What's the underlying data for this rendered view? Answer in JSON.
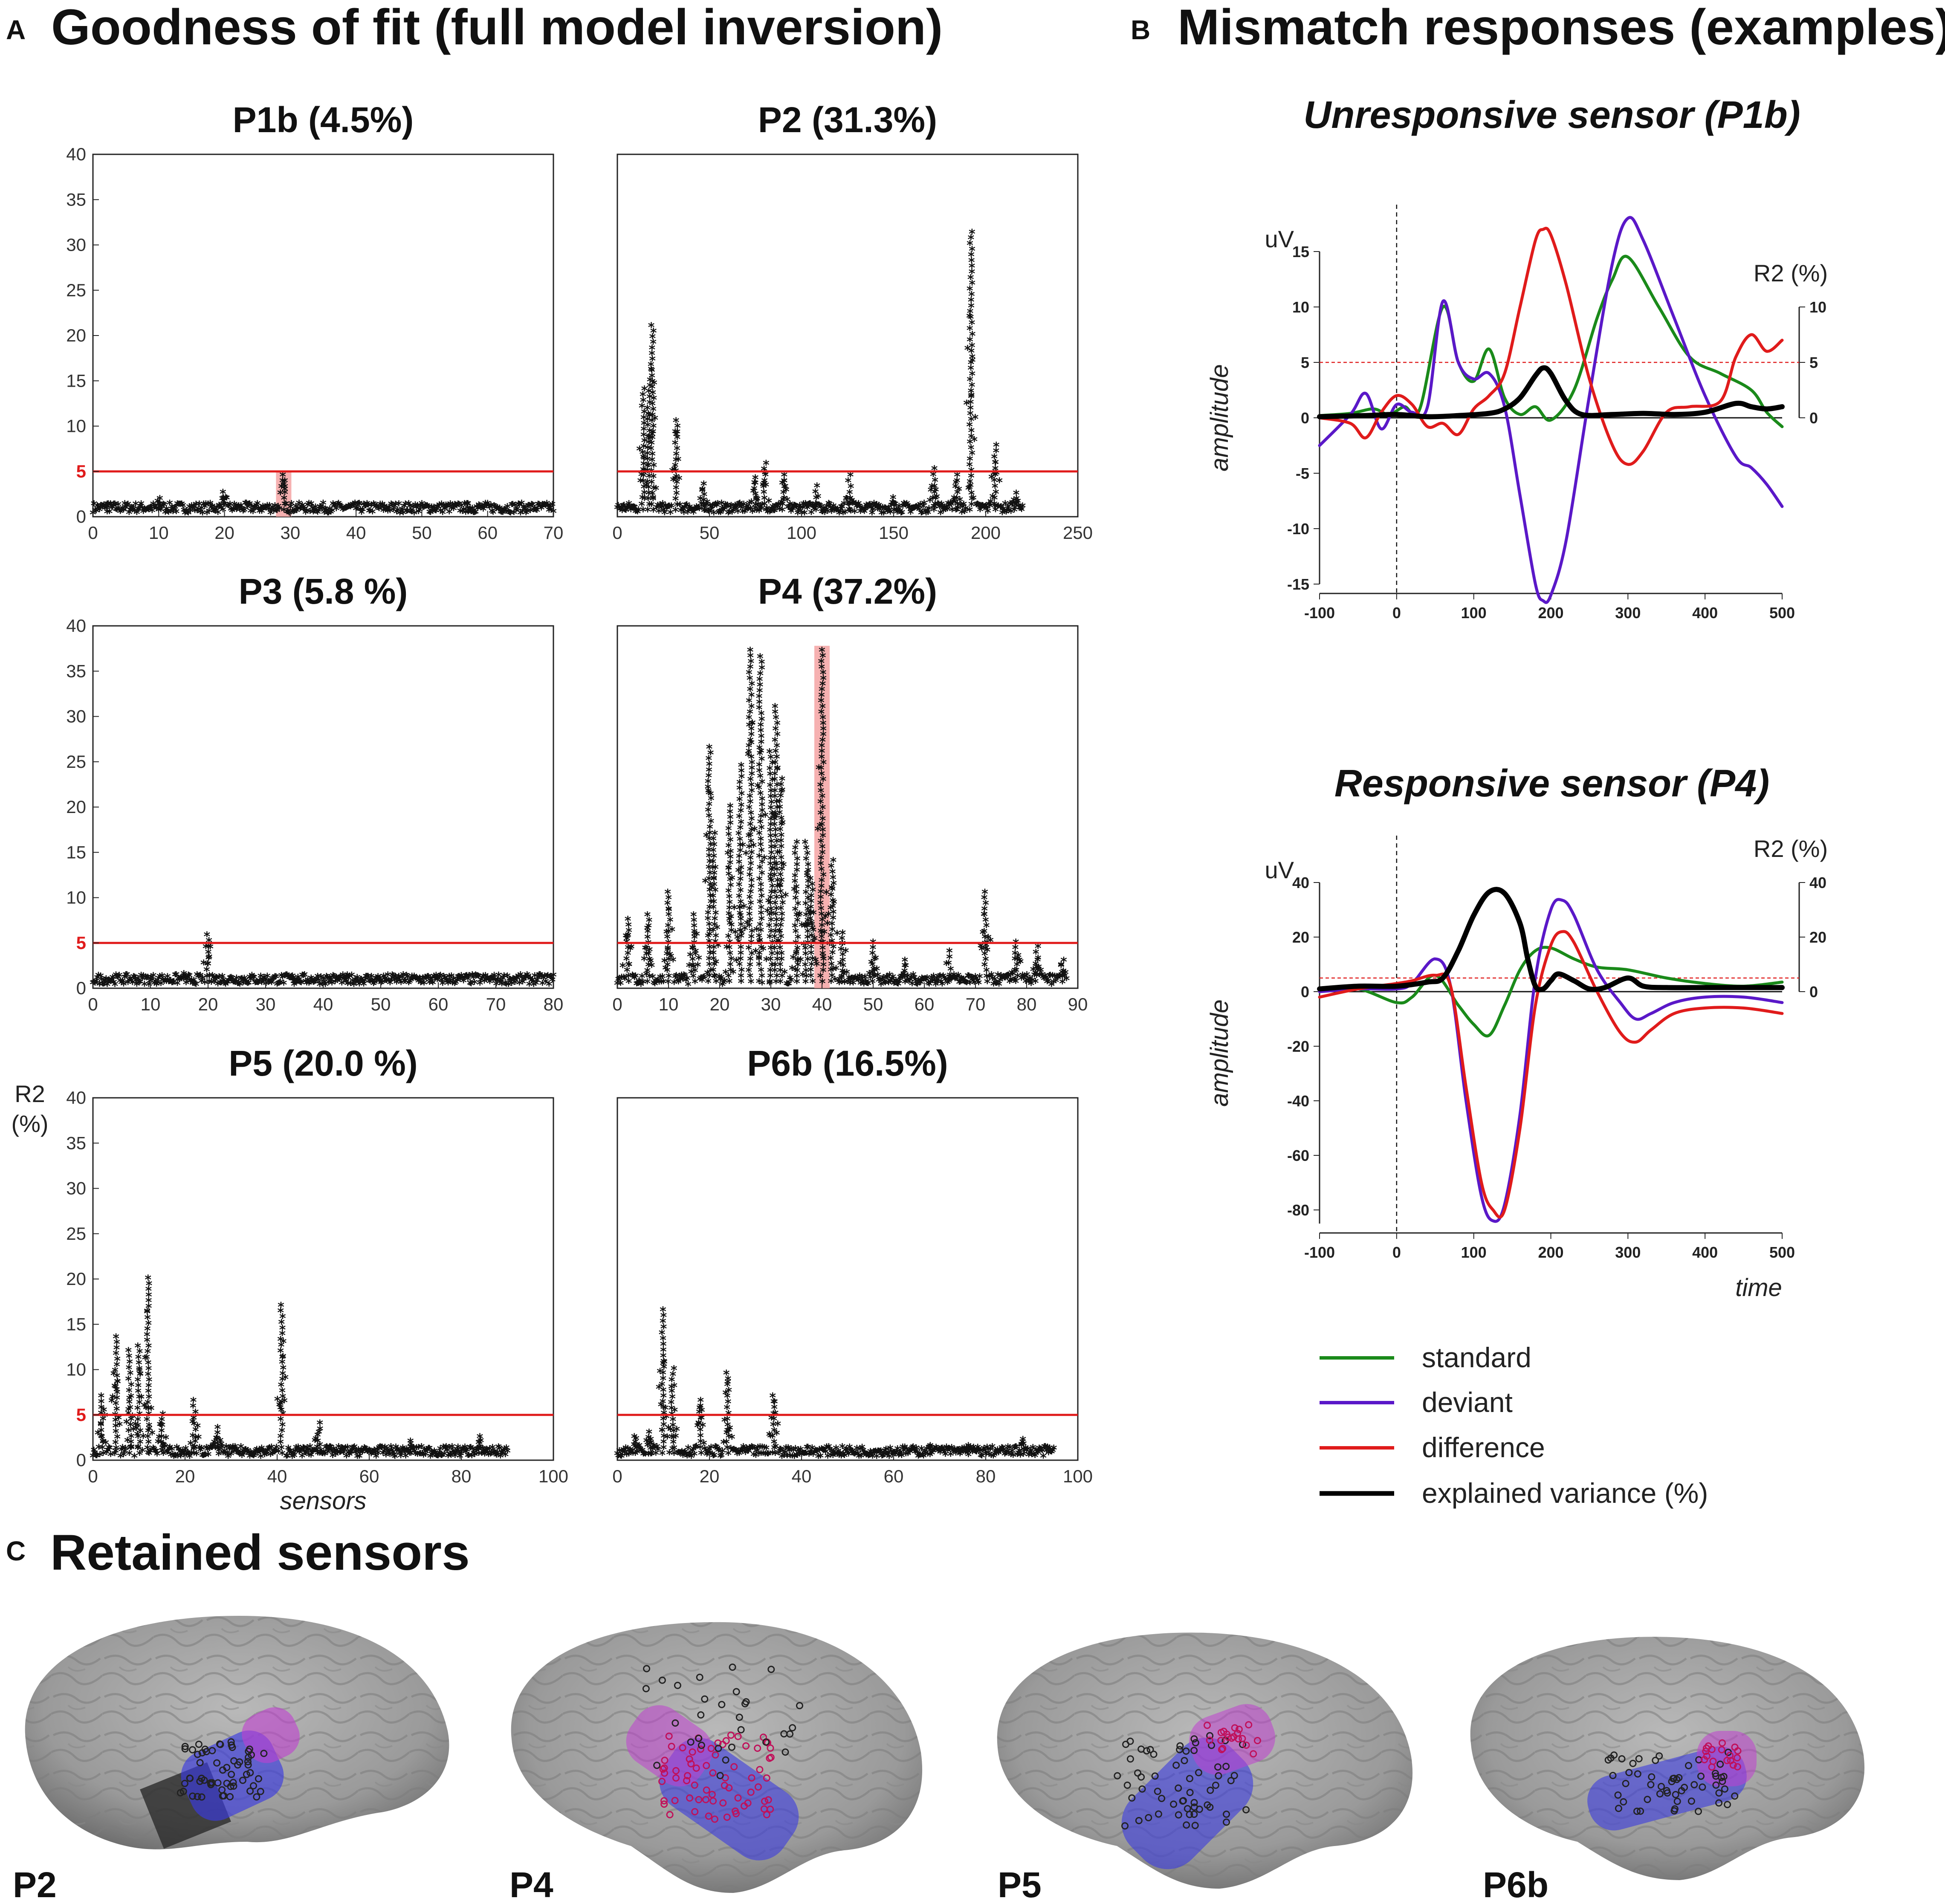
{
  "figure": {
    "panel_a_letter": "A",
    "panel_a_title": "Goodness of fit (full model inversion)",
    "panel_b_letter": "B",
    "panel_b_title": "Mismatch responses  (examples)",
    "panel_c_letter": "C",
    "panel_c_title": "Retained sensors"
  },
  "colors": {
    "threshold": "#e01b1b",
    "highlight": "#f5a3a3",
    "standard": "#1a8a1a",
    "deviant": "#5a18c8",
    "difference": "#e01b1b",
    "explained": "#000000",
    "brain": "#9a9a9a",
    "blue_patch": "#3a3ae0",
    "purple_patch": "#c040d0"
  },
  "chart_data": [
    {
      "type": "scatter",
      "id": "P1b",
      "title": "P1b (4.5%)",
      "xlim": [
        0,
        70
      ],
      "ylim": [
        0,
        40
      ],
      "xticks": [
        "0",
        "10",
        "20",
        "30",
        "40",
        "50",
        "60",
        "70"
      ],
      "yticks": [
        "0",
        "5",
        "10",
        "15",
        "20",
        "25",
        "30",
        "35",
        "40"
      ],
      "threshold": 5,
      "threshold_label": "5",
      "n_sensors": 70,
      "max_r2": 4.5,
      "peaks": [
        [
          2,
          1.3
        ],
        [
          10,
          1.9
        ],
        [
          20,
          2.6
        ],
        [
          29,
          4.5
        ],
        [
          57,
          1.3
        ]
      ],
      "highlight_sensor": 29,
      "ylabel": "",
      "xlabel": ""
    },
    {
      "type": "scatter",
      "id": "P2",
      "title": "P2 (31.3%)",
      "xlim": [
        0,
        250
      ],
      "ylim": [
        0,
        40
      ],
      "xticks": [
        "0",
        "50",
        "100",
        "150",
        "200",
        "250"
      ],
      "yticks": [],
      "threshold": 5,
      "threshold_label": "",
      "n_sensors": 220,
      "max_r2": 31.3,
      "peaks": [
        [
          14,
          14
        ],
        [
          17,
          15
        ],
        [
          19,
          21
        ],
        [
          32,
          10.5
        ],
        [
          47,
          3.5
        ],
        [
          75,
          4.2
        ],
        [
          80,
          5.8
        ],
        [
          90,
          4.5
        ],
        [
          108,
          3.3
        ],
        [
          126,
          4.5
        ],
        [
          150,
          2
        ],
        [
          172,
          5.2
        ],
        [
          184,
          4.5
        ],
        [
          192,
          31.3
        ],
        [
          205,
          7.8
        ],
        [
          216,
          2.5
        ]
      ],
      "highlight_sensor": null,
      "ylabel": "",
      "xlabel": ""
    },
    {
      "type": "scatter",
      "id": "P3",
      "title": "P3 (5.8 %)",
      "xlim": [
        0,
        80
      ],
      "ylim": [
        0,
        40
      ],
      "xticks": [
        "0",
        "10",
        "20",
        "30",
        "40",
        "50",
        "60",
        "70",
        "80"
      ],
      "yticks": [
        "0",
        "5",
        "10",
        "15",
        "20",
        "25",
        "30",
        "35",
        "40"
      ],
      "threshold": 5,
      "threshold_label": "5",
      "n_sensors": 80,
      "max_r2": 5.8,
      "peaks": [
        [
          16,
          1.5
        ],
        [
          20,
          5.8
        ],
        [
          35,
          1
        ],
        [
          44,
          1.2
        ]
      ],
      "highlight_sensor": null,
      "ylabel": "",
      "xlabel": ""
    },
    {
      "type": "scatter",
      "id": "P4",
      "title": "P4 (37.2%)",
      "xlim": [
        0,
        90
      ],
      "ylim": [
        0,
        40
      ],
      "xticks": [
        "0",
        "10",
        "20",
        "30",
        "40",
        "50",
        "60",
        "70",
        "80",
        "90"
      ],
      "yticks": [],
      "threshold": 5,
      "threshold_label": "",
      "n_sensors": 88,
      "max_r2": 37.2,
      "peaks": [
        [
          2,
          7.5
        ],
        [
          6,
          8
        ],
        [
          10,
          10.5
        ],
        [
          15,
          8
        ],
        [
          18,
          26.5
        ],
        [
          19,
          17
        ],
        [
          22,
          20
        ],
        [
          24,
          24.5
        ],
        [
          26,
          37.2
        ],
        [
          28,
          36.5
        ],
        [
          30,
          26
        ],
        [
          31,
          31
        ],
        [
          32,
          23
        ],
        [
          35,
          16
        ],
        [
          37,
          16
        ],
        [
          38,
          12
        ],
        [
          40,
          37.2
        ],
        [
          42,
          14
        ],
        [
          44,
          6
        ],
        [
          50,
          5
        ],
        [
          56,
          3
        ],
        [
          65,
          4
        ],
        [
          72,
          10.5
        ],
        [
          78,
          5
        ],
        [
          82,
          4.5
        ],
        [
          87,
          3
        ]
      ],
      "highlight_sensor": 40,
      "ylabel": "",
      "xlabel": ""
    },
    {
      "type": "scatter",
      "id": "P5",
      "title": "P5 (20.0 %)",
      "xlim": [
        0,
        100
      ],
      "ylim": [
        0,
        40
      ],
      "xticks": [
        "0",
        "20",
        "40",
        "60",
        "80",
        "100"
      ],
      "yticks": [
        "0",
        "5",
        "10",
        "15",
        "20",
        "25",
        "30",
        "35",
        "40"
      ],
      "threshold": 5,
      "threshold_label": "5",
      "n_sensors": 90,
      "max_r2": 20.0,
      "peaks": [
        [
          2,
          7
        ],
        [
          5,
          13.5
        ],
        [
          8,
          12
        ],
        [
          10,
          12.5
        ],
        [
          12,
          20
        ],
        [
          15,
          5
        ],
        [
          22,
          6.5
        ],
        [
          27,
          3.5
        ],
        [
          41,
          17
        ],
        [
          49,
          4
        ],
        [
          69,
          2
        ],
        [
          84,
          2.5
        ]
      ],
      "highlight_sensor": null,
      "ylabel": "R2\n(%)",
      "ylabel_line1": "R2",
      "ylabel_line2": "(%)",
      "xlabel": "sensors"
    },
    {
      "type": "scatter",
      "id": "P6b",
      "title": "P6b (16.5%)",
      "xlim": [
        0,
        100
      ],
      "ylim": [
        0,
        40
      ],
      "xticks": [
        "0",
        "20",
        "40",
        "60",
        "80",
        "100"
      ],
      "yticks": [],
      "threshold": 5,
      "threshold_label": "",
      "n_sensors": 95,
      "max_r2": 16.5,
      "peaks": [
        [
          4,
          2.5
        ],
        [
          7,
          3
        ],
        [
          10,
          16.5
        ],
        [
          12,
          10
        ],
        [
          18,
          6.5
        ],
        [
          24,
          9.5
        ],
        [
          34,
          7
        ],
        [
          68,
          1.5
        ],
        [
          76,
          1.5
        ],
        [
          88,
          2.2
        ]
      ],
      "highlight_sensor": null,
      "ylabel": "",
      "xlabel": ""
    },
    {
      "type": "line",
      "id": "unresponsive",
      "title": "Unresponsive sensor (P1b)",
      "xlim": [
        -100,
        500
      ],
      "ylim": [
        -15,
        15
      ],
      "y2lim": [
        0,
        10
      ],
      "xticks": [
        "-100",
        "0",
        "100",
        "200",
        "300",
        "400",
        "500"
      ],
      "yticks": [
        "15",
        "10",
        "5",
        "0",
        "-5",
        "-10",
        "-15"
      ],
      "y2ticks": [
        "10",
        "5",
        "0"
      ],
      "ylabel": "amplitude",
      "yunit": "uV",
      "y2label": "R2 (%)",
      "xlabel": "",
      "threshold_y2": 5,
      "series": [
        {
          "name": "standard",
          "x": [
            -100,
            -60,
            -30,
            -10,
            10,
            30,
            60,
            80,
            100,
            120,
            140,
            160,
            180,
            200,
            230,
            260,
            280,
            300,
            340,
            380,
            420,
            460,
            480,
            500
          ],
          "y": [
            0.2,
            0.4,
            0.8,
            0.3,
            1.0,
            0.8,
            10.0,
            5.0,
            3.3,
            6.2,
            1.8,
            0.3,
            1.0,
            -0.2,
            2.5,
            9.0,
            12.5,
            14.5,
            10.0,
            5.5,
            4.0,
            2.5,
            0.5,
            -0.8
          ]
        },
        {
          "name": "deviant",
          "x": [
            -100,
            -60,
            -40,
            -20,
            0,
            20,
            40,
            60,
            80,
            100,
            120,
            140,
            160,
            180,
            190,
            200,
            220,
            250,
            280,
            300,
            320,
            360,
            400,
            440,
            460,
            480,
            500
          ],
          "y": [
            -2.5,
            0.3,
            2.2,
            -1.0,
            1.2,
            0.5,
            1.0,
            10.5,
            5.0,
            3.5,
            4.0,
            1.0,
            -7.0,
            -15.0,
            -16.5,
            -16.0,
            -11.0,
            2.0,
            14.0,
            18.0,
            16.0,
            9.0,
            2.0,
            -3.5,
            -4.5,
            -6.0,
            -8.0
          ]
        },
        {
          "name": "difference",
          "x": [
            -100,
            -60,
            -40,
            -20,
            0,
            20,
            40,
            60,
            80,
            100,
            120,
            140,
            160,
            180,
            190,
            200,
            220,
            250,
            280,
            300,
            320,
            350,
            380,
            420,
            440,
            460,
            480,
            500
          ],
          "y": [
            0.0,
            -0.5,
            -1.8,
            0.5,
            2.0,
            1.2,
            -0.8,
            -0.5,
            -1.5,
            0.8,
            2.0,
            4.0,
            10.0,
            16.0,
            17.0,
            16.5,
            12.0,
            3.5,
            -2.5,
            -4.2,
            -3.0,
            0.5,
            1.0,
            1.5,
            5.5,
            7.5,
            6.0,
            7.0
          ]
        },
        {
          "name": "explained variance (%)",
          "axis": "y2",
          "x": [
            -100,
            -40,
            0,
            40,
            80,
            120,
            140,
            160,
            180,
            190,
            200,
            220,
            240,
            280,
            320,
            360,
            400,
            440,
            460,
            480,
            500
          ],
          "y": [
            0.1,
            0.2,
            0.3,
            0.1,
            0.2,
            0.4,
            0.8,
            1.8,
            3.8,
            4.5,
            4.0,
            1.5,
            0.3,
            0.3,
            0.4,
            0.3,
            0.5,
            1.3,
            1.0,
            0.8,
            1.0
          ]
        }
      ]
    },
    {
      "type": "line",
      "id": "responsive",
      "title": "Responsive sensor (P4)",
      "xlim": [
        -100,
        500
      ],
      "ylim": [
        -85,
        40
      ],
      "y2lim": [
        0,
        40
      ],
      "xticks": [
        "-100",
        "0",
        "100",
        "200",
        "300",
        "400",
        "500"
      ],
      "yticks": [
        "40",
        "20",
        "0",
        "-20",
        "-40",
        "-60",
        "-80"
      ],
      "y2ticks": [
        "40",
        "20",
        "0"
      ],
      "ylabel": "amplitude",
      "yunit": "uV",
      "y2label": "R2 (%)",
      "xlabel": "time",
      "threshold_y2": 5,
      "series": [
        {
          "name": "standard",
          "x": [
            -100,
            -50,
            0,
            20,
            50,
            80,
            100,
            120,
            140,
            160,
            180,
            200,
            230,
            260,
            300,
            350,
            400,
            450,
            500
          ],
          "y": [
            0.5,
            1.0,
            -4.0,
            -2.0,
            6.0,
            -5.0,
            -12.0,
            -16.0,
            -5.0,
            8.0,
            15.0,
            16.0,
            12.0,
            9.0,
            8.0,
            5.0,
            3.0,
            2.0,
            3.5
          ]
        },
        {
          "name": "deviant",
          "x": [
            -100,
            -50,
            0,
            20,
            50,
            70,
            90,
            110,
            125,
            140,
            160,
            180,
            200,
            215,
            230,
            260,
            290,
            310,
            330,
            360,
            400,
            450,
            500
          ],
          "y": [
            0.0,
            1.0,
            1.0,
            3.0,
            12.0,
            2.0,
            -40.0,
            -75.0,
            -84.0,
            -78.0,
            -45.0,
            5.0,
            30.0,
            33.5,
            28.0,
            8.0,
            -4.0,
            -10.0,
            -8.0,
            -4.0,
            -2.0,
            -2.0,
            -4.0
          ]
        },
        {
          "name": "difference",
          "x": [
            -100,
            -50,
            0,
            20,
            50,
            70,
            90,
            110,
            125,
            140,
            160,
            180,
            200,
            215,
            230,
            260,
            290,
            310,
            330,
            360,
            400,
            450,
            500
          ],
          "y": [
            -2.0,
            1.0,
            3.0,
            4.0,
            6.0,
            2.0,
            -35.0,
            -70.0,
            -80.0,
            -80.0,
            -50.0,
            -5.0,
            17.0,
            22.0,
            18.0,
            0.0,
            -15.0,
            -18.5,
            -14.0,
            -8.0,
            -6.0,
            -6.0,
            -8.0
          ]
        },
        {
          "name": "explained variance (%)",
          "axis": "y2",
          "x": [
            -100,
            -50,
            0,
            40,
            60,
            80,
            100,
            120,
            140,
            160,
            170,
            180,
            190,
            200,
            210,
            230,
            250,
            270,
            300,
            320,
            350,
            400,
            450,
            500
          ],
          "y": [
            1.0,
            2.0,
            2.0,
            3.5,
            5.0,
            15.0,
            28.0,
            36.5,
            36.0,
            25.0,
            12.0,
            2.0,
            1.0,
            4.0,
            6.5,
            4.0,
            1.0,
            1.5,
            5.0,
            2.0,
            1.5,
            1.5,
            1.5,
            1.5
          ]
        }
      ]
    }
  ],
  "legend": [
    {
      "label": "standard",
      "color": "#1a8a1a"
    },
    {
      "label": "deviant",
      "color": "#5a18c8"
    },
    {
      "label": "difference",
      "color": "#e01b1b"
    },
    {
      "label": "explained variance (%)",
      "color": "#000000"
    }
  ],
  "brains": [
    {
      "label": "P2",
      "orientation": "left"
    },
    {
      "label": "P4",
      "orientation": "right"
    },
    {
      "label": "P5",
      "orientation": "right"
    },
    {
      "label": "P6b",
      "orientation": "right"
    }
  ]
}
